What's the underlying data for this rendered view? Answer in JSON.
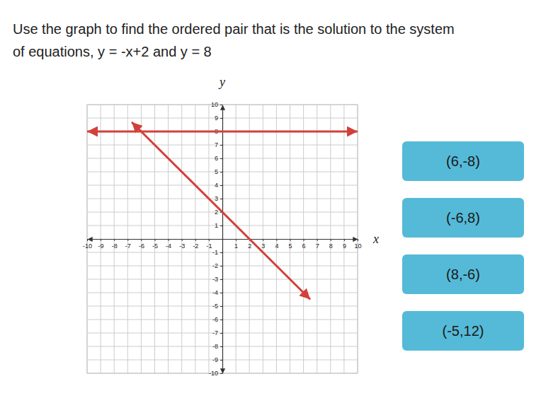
{
  "question": [
    "Use the graph to find the ordered pair that is the solution to the system",
    "of equations, y = -x+2 and y = 8"
  ],
  "chart_data": {
    "type": "line",
    "x_label": "x",
    "y_label": "y",
    "xlim": [
      -10,
      10
    ],
    "ylim": [
      -10,
      10
    ],
    "xticks": [
      -10,
      -9,
      -8,
      -7,
      -6,
      -5,
      -4,
      -3,
      -2,
      -1,
      1,
      2,
      3,
      4,
      5,
      6,
      7,
      8,
      9,
      10
    ],
    "yticks": [
      -10,
      -9,
      -8,
      -7,
      -6,
      -5,
      -4,
      -3,
      -2,
      -1,
      1,
      2,
      3,
      4,
      5,
      6,
      7,
      8,
      9,
      10
    ],
    "grid": true,
    "series": [
      {
        "color": "#d2403a",
        "x": [
          -10,
          10
        ],
        "values": [
          8,
          8
        ]
      },
      {
        "color": "#d2403a",
        "x": [
          -6.7,
          6.5
        ],
        "values": [
          8.7,
          -4.5
        ]
      }
    ]
  },
  "choices": [
    "(6,-8)",
    "(-6,8)",
    "(8,-6)",
    "(-5,12)"
  ]
}
